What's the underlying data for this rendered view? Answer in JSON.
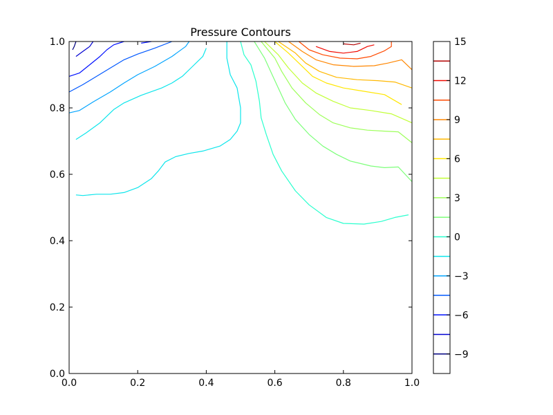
{
  "chart_data": {
    "type": "contour",
    "title": "Pressure Contours",
    "xlabel": "",
    "ylabel": "",
    "xlim": [
      0,
      1
    ],
    "ylim": [
      0,
      1
    ],
    "x_ticks": [
      "0.0",
      "0.2",
      "0.4",
      "0.6",
      "0.8",
      "1.0"
    ],
    "y_ticks": [
      "0.0",
      "0.2",
      "0.4",
      "0.6",
      "0.8",
      "1.0"
    ],
    "colorbar": {
      "range": [
        -10.5,
        15
      ],
      "tick_labels": [
        {
          "value": 15,
          "label": "15"
        },
        {
          "value": 12,
          "label": "12"
        },
        {
          "value": 9,
          "label": "9"
        },
        {
          "value": 6,
          "label": "6"
        },
        {
          "value": 3,
          "label": "3"
        },
        {
          "value": 0,
          "label": "0"
        },
        {
          "value": -3,
          "label": "−3"
        },
        {
          "value": -6,
          "label": "−6"
        },
        {
          "value": -9,
          "label": "−9"
        }
      ],
      "levels": [
        {
          "value": -9.0,
          "color": "#00007f"
        },
        {
          "value": -7.5,
          "color": "#0000d1"
        },
        {
          "value": -6.0,
          "color": "#0010ff"
        },
        {
          "value": -4.5,
          "color": "#0058ff"
        },
        {
          "value": -3.0,
          "color": "#00a4ff"
        },
        {
          "value": -1.5,
          "color": "#0ce5eb"
        },
        {
          "value": 0.0,
          "color": "#29ffce"
        },
        {
          "value": 1.5,
          "color": "#7dff7a"
        },
        {
          "value": 3.0,
          "color": "#9dff5a"
        },
        {
          "value": 4.5,
          "color": "#c1ff36"
        },
        {
          "value": 6.0,
          "color": "#ffe600"
        },
        {
          "value": 7.5,
          "color": "#ffb800"
        },
        {
          "value": 9.0,
          "color": "#ff8600"
        },
        {
          "value": 10.5,
          "color": "#ff4a00"
        },
        {
          "value": 12.0,
          "color": "#f10800"
        },
        {
          "value": 13.5,
          "color": "#b20000"
        }
      ]
    },
    "contours": [
      {
        "level": -9.0,
        "color": "#00007f",
        "points": [
          [
            0.01,
            0.975
          ],
          [
            0.015,
            0.985
          ],
          [
            0.02,
            1.0
          ]
        ]
      },
      {
        "level": -7.5,
        "color": "#0000d1",
        "points": [
          [
            0.02,
            0.955
          ],
          [
            0.04,
            0.97
          ],
          [
            0.06,
            0.985
          ],
          [
            0.07,
            1.0
          ]
        ]
      },
      {
        "level": -6.0,
        "color": "#0010ff",
        "points": [
          [
            0.0,
            0.895
          ],
          [
            0.03,
            0.905
          ],
          [
            0.06,
            0.93
          ],
          [
            0.09,
            0.955
          ],
          [
            0.11,
            0.975
          ],
          [
            0.13,
            0.99
          ],
          [
            0.16,
            1.0
          ]
        ]
      },
      {
        "level": -6.0,
        "color": "#0010ff",
        "points": [
          [
            0.21,
            0.995
          ],
          [
            0.24,
            1.0
          ]
        ]
      },
      {
        "level": -4.5,
        "color": "#0058ff",
        "points": [
          [
            0.0,
            0.848
          ],
          [
            0.04,
            0.87
          ],
          [
            0.08,
            0.895
          ],
          [
            0.12,
            0.92
          ],
          [
            0.16,
            0.945
          ],
          [
            0.2,
            0.962
          ],
          [
            0.25,
            0.98
          ],
          [
            0.3,
            1.0
          ]
        ]
      },
      {
        "level": -3.0,
        "color": "#00a4ff",
        "points": [
          [
            0.0,
            0.785
          ],
          [
            0.03,
            0.792
          ],
          [
            0.07,
            0.818
          ],
          [
            0.12,
            0.848
          ],
          [
            0.16,
            0.875
          ],
          [
            0.2,
            0.9
          ],
          [
            0.25,
            0.925
          ],
          [
            0.3,
            0.955
          ],
          [
            0.34,
            0.985
          ],
          [
            0.35,
            1.0
          ]
        ]
      },
      {
        "level": -1.5,
        "color": "#0ce5eb",
        "points": [
          [
            0.02,
            0.705
          ],
          [
            0.05,
            0.725
          ],
          [
            0.09,
            0.755
          ],
          [
            0.13,
            0.795
          ],
          [
            0.16,
            0.815
          ],
          [
            0.21,
            0.838
          ],
          [
            0.27,
            0.86
          ],
          [
            0.3,
            0.875
          ],
          [
            0.33,
            0.895
          ],
          [
            0.36,
            0.925
          ],
          [
            0.39,
            0.955
          ],
          [
            0.4,
            0.98
          ]
        ]
      },
      {
        "level": -1.5,
        "color": "#0ce5eb",
        "points": [
          [
            0.02,
            0.538
          ],
          [
            0.04,
            0.536
          ],
          [
            0.08,
            0.54
          ],
          [
            0.12,
            0.54
          ],
          [
            0.16,
            0.545
          ],
          [
            0.2,
            0.56
          ],
          [
            0.24,
            0.587
          ],
          [
            0.26,
            0.61
          ],
          [
            0.28,
            0.637
          ],
          [
            0.31,
            0.653
          ],
          [
            0.35,
            0.663
          ],
          [
            0.39,
            0.67
          ],
          [
            0.44,
            0.685
          ],
          [
            0.47,
            0.705
          ],
          [
            0.49,
            0.73
          ],
          [
            0.5,
            0.755
          ],
          [
            0.5,
            0.8
          ],
          [
            0.49,
            0.86
          ],
          [
            0.47,
            0.9
          ],
          [
            0.46,
            0.95
          ],
          [
            0.46,
            1.0
          ]
        ]
      },
      {
        "level": -1.5,
        "color": "#0ce5eb",
        "points": [
          [
            0.46,
            1.0
          ],
          [
            0.46,
            1.0
          ]
        ]
      },
      {
        "level": 0.0,
        "color": "#29ffce",
        "points": [
          [
            0.5,
            1.0
          ],
          [
            0.51,
            0.96
          ],
          [
            0.53,
            0.93
          ],
          [
            0.545,
            0.88
          ],
          [
            0.555,
            0.82
          ],
          [
            0.56,
            0.77
          ],
          [
            0.575,
            0.72
          ],
          [
            0.595,
            0.66
          ],
          [
            0.62,
            0.61
          ],
          [
            0.66,
            0.55
          ],
          [
            0.7,
            0.508
          ],
          [
            0.75,
            0.47
          ],
          [
            0.8,
            0.452
          ],
          [
            0.86,
            0.45
          ],
          [
            0.91,
            0.458
          ],
          [
            0.95,
            0.47
          ],
          [
            0.99,
            0.478
          ]
        ]
      },
      {
        "level": 1.5,
        "color": "#7dff7a",
        "points": [
          [
            0.54,
            1.0
          ],
          [
            0.57,
            0.95
          ],
          [
            0.59,
            0.905
          ],
          [
            0.61,
            0.86
          ],
          [
            0.63,
            0.815
          ],
          [
            0.66,
            0.765
          ],
          [
            0.7,
            0.72
          ],
          [
            0.74,
            0.685
          ],
          [
            0.78,
            0.66
          ],
          [
            0.82,
            0.64
          ],
          [
            0.88,
            0.625
          ],
          [
            0.92,
            0.62
          ],
          [
            0.96,
            0.622
          ],
          [
            1.0,
            0.578
          ]
        ]
      },
      {
        "level": 3.0,
        "color": "#9dff5a",
        "points": [
          [
            0.56,
            1.0
          ],
          [
            0.6,
            0.95
          ],
          [
            0.62,
            0.91
          ],
          [
            0.65,
            0.86
          ],
          [
            0.69,
            0.815
          ],
          [
            0.73,
            0.78
          ],
          [
            0.77,
            0.755
          ],
          [
            0.82,
            0.74
          ],
          [
            0.87,
            0.733
          ],
          [
            0.92,
            0.73
          ],
          [
            0.96,
            0.728
          ],
          [
            1.0,
            0.695
          ]
        ]
      },
      {
        "level": 4.5,
        "color": "#c1ff36",
        "points": [
          [
            0.57,
            1.0
          ],
          [
            0.61,
            0.96
          ],
          [
            0.64,
            0.92
          ],
          [
            0.68,
            0.875
          ],
          [
            0.72,
            0.845
          ],
          [
            0.77,
            0.82
          ],
          [
            0.82,
            0.8
          ],
          [
            0.88,
            0.792
          ],
          [
            0.94,
            0.782
          ],
          [
            1.0,
            0.755
          ]
        ]
      },
      {
        "level": 6.0,
        "color": "#ffe600",
        "points": [
          [
            0.6,
            1.0
          ],
          [
            0.64,
            0.965
          ],
          [
            0.67,
            0.935
          ],
          [
            0.71,
            0.895
          ],
          [
            0.75,
            0.875
          ],
          [
            0.8,
            0.86
          ],
          [
            0.86,
            0.85
          ],
          [
            0.92,
            0.84
          ],
          [
            0.97,
            0.81
          ]
        ]
      },
      {
        "level": 7.5,
        "color": "#ffb800",
        "points": [
          [
            0.61,
            1.0
          ],
          [
            0.66,
            0.965
          ],
          [
            0.69,
            0.935
          ],
          [
            0.73,
            0.91
          ],
          [
            0.78,
            0.892
          ],
          [
            0.84,
            0.885
          ],
          [
            0.9,
            0.882
          ],
          [
            0.95,
            0.878
          ],
          [
            1.0,
            0.86
          ]
        ]
      },
      {
        "level": 9.0,
        "color": "#ff8600",
        "points": [
          [
            0.64,
            1.0
          ],
          [
            0.68,
            0.97
          ],
          [
            0.72,
            0.945
          ],
          [
            0.77,
            0.93
          ],
          [
            0.83,
            0.925
          ],
          [
            0.89,
            0.927
          ],
          [
            0.93,
            0.935
          ],
          [
            0.97,
            0.945
          ],
          [
            1.0,
            0.915
          ]
        ]
      },
      {
        "level": 10.5,
        "color": "#ff4a00",
        "points": [
          [
            0.67,
            1.0
          ],
          [
            0.7,
            0.975
          ],
          [
            0.74,
            0.96
          ],
          [
            0.79,
            0.95
          ],
          [
            0.84,
            0.948
          ],
          [
            0.88,
            0.955
          ],
          [
            0.92,
            0.972
          ],
          [
            0.94,
            0.985
          ],
          [
            0.94,
            1.0
          ]
        ]
      },
      {
        "level": 12.0,
        "color": "#f10800",
        "points": [
          [
            0.72,
            0.985
          ],
          [
            0.76,
            0.97
          ],
          [
            0.8,
            0.965
          ],
          [
            0.84,
            0.97
          ],
          [
            0.87,
            0.985
          ],
          [
            0.89,
            0.99
          ]
        ]
      },
      {
        "level": 13.5,
        "color": "#b20000",
        "points": [
          [
            0.8,
            0.993
          ],
          [
            0.83,
            0.99
          ],
          [
            0.85,
            0.995
          ]
        ]
      }
    ]
  }
}
